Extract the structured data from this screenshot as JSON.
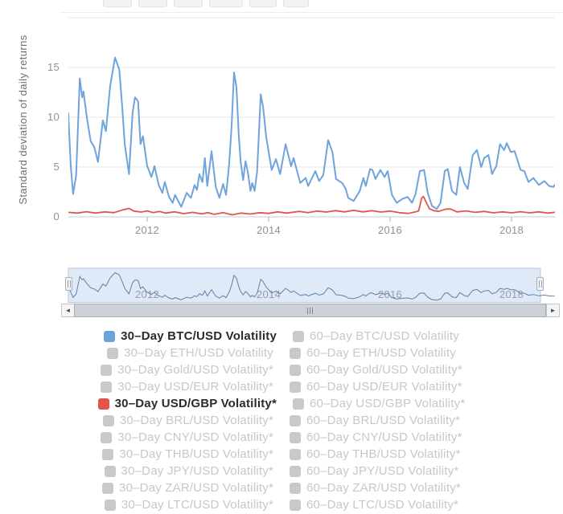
{
  "toolbar": {
    "range_button_count": 6
  },
  "chart_data": {
    "type": "line",
    "title": "",
    "xlabel": "",
    "ylabel": "Standard deviation of daily returns",
    "x_range": [
      2010.7,
      2018.71
    ],
    "ylim": [
      0,
      20
    ],
    "x_ticks": [
      2012,
      2014,
      2016,
      2018
    ],
    "y_ticks": [
      0,
      5,
      10,
      15
    ],
    "grid": true,
    "legend_position": "bottom",
    "series": [
      {
        "name": "30–Day BTC/USD Volatility",
        "color": "#6FA3DB",
        "points": [
          [
            2010.7,
            10.4
          ],
          [
            2010.74,
            5.2
          ],
          [
            2010.78,
            2.3
          ],
          [
            2010.83,
            4.2
          ],
          [
            2010.89,
            13.9
          ],
          [
            2010.93,
            12.0
          ],
          [
            2010.95,
            12.6
          ],
          [
            2011.01,
            9.8
          ],
          [
            2011.07,
            7.6
          ],
          [
            2011.13,
            7.0
          ],
          [
            2011.19,
            5.5
          ],
          [
            2011.27,
            9.7
          ],
          [
            2011.32,
            8.6
          ],
          [
            2011.39,
            13.1
          ],
          [
            2011.47,
            16.0
          ],
          [
            2011.54,
            14.8
          ],
          [
            2011.59,
            11.0
          ],
          [
            2011.63,
            7.3
          ],
          [
            2011.7,
            4.3
          ],
          [
            2011.76,
            10.5
          ],
          [
            2011.8,
            12.0
          ],
          [
            2011.85,
            11.6
          ],
          [
            2011.89,
            7.3
          ],
          [
            2011.93,
            8.1
          ],
          [
            2012.0,
            5.1
          ],
          [
            2012.07,
            4.0
          ],
          [
            2012.12,
            5.1
          ],
          [
            2012.19,
            3.2
          ],
          [
            2012.25,
            2.4
          ],
          [
            2012.29,
            3.5
          ],
          [
            2012.36,
            2.0
          ],
          [
            2012.42,
            1.4
          ],
          [
            2012.46,
            2.2
          ],
          [
            2012.56,
            1.0
          ],
          [
            2012.65,
            2.4
          ],
          [
            2012.72,
            1.9
          ],
          [
            2012.78,
            3.2
          ],
          [
            2012.82,
            2.7
          ],
          [
            2012.86,
            4.3
          ],
          [
            2012.91,
            3.5
          ],
          [
            2012.95,
            5.9
          ],
          [
            2012.99,
            3.1
          ],
          [
            2013.06,
            6.6
          ],
          [
            2013.13,
            3.0
          ],
          [
            2013.19,
            1.9
          ],
          [
            2013.25,
            3.3
          ],
          [
            2013.3,
            2.2
          ],
          [
            2013.35,
            5.3
          ],
          [
            2013.39,
            9.0
          ],
          [
            2013.43,
            14.5
          ],
          [
            2013.47,
            13.0
          ],
          [
            2013.51,
            8.0
          ],
          [
            2013.54,
            5.5
          ],
          [
            2013.58,
            3.7
          ],
          [
            2013.62,
            5.6
          ],
          [
            2013.66,
            4.4
          ],
          [
            2013.7,
            2.6
          ],
          [
            2013.73,
            3.4
          ],
          [
            2013.77,
            2.6
          ],
          [
            2013.81,
            4.6
          ],
          [
            2013.87,
            12.3
          ],
          [
            2013.91,
            11.0
          ],
          [
            2013.96,
            8.0
          ],
          [
            2014.05,
            4.7
          ],
          [
            2014.12,
            5.8
          ],
          [
            2014.19,
            4.3
          ],
          [
            2014.28,
            7.3
          ],
          [
            2014.37,
            5.1
          ],
          [
            2014.41,
            5.9
          ],
          [
            2014.52,
            3.4
          ],
          [
            2014.61,
            3.9
          ],
          [
            2014.65,
            3.1
          ],
          [
            2014.77,
            4.6
          ],
          [
            2014.83,
            3.6
          ],
          [
            2014.9,
            4.2
          ],
          [
            2014.98,
            7.7
          ],
          [
            2015.05,
            6.5
          ],
          [
            2015.11,
            3.8
          ],
          [
            2015.21,
            3.4
          ],
          [
            2015.27,
            2.8
          ],
          [
            2015.31,
            1.9
          ],
          [
            2015.4,
            1.6
          ],
          [
            2015.5,
            2.6
          ],
          [
            2015.56,
            3.9
          ],
          [
            2015.6,
            3.1
          ],
          [
            2015.67,
            4.8
          ],
          [
            2015.71,
            4.7
          ],
          [
            2015.76,
            3.8
          ],
          [
            2015.84,
            4.7
          ],
          [
            2015.91,
            4.0
          ],
          [
            2015.96,
            4.6
          ],
          [
            2016.03,
            2.2
          ],
          [
            2016.11,
            1.4
          ],
          [
            2016.2,
            1.8
          ],
          [
            2016.29,
            2.0
          ],
          [
            2016.36,
            1.4
          ],
          [
            2016.42,
            2.3
          ],
          [
            2016.49,
            4.6
          ],
          [
            2016.56,
            4.7
          ],
          [
            2016.62,
            2.4
          ],
          [
            2016.69,
            1.1
          ],
          [
            2016.77,
            0.8
          ],
          [
            2016.83,
            1.4
          ],
          [
            2016.9,
            4.6
          ],
          [
            2016.95,
            4.8
          ],
          [
            2017.02,
            2.6
          ],
          [
            2017.09,
            2.2
          ],
          [
            2017.15,
            5.0
          ],
          [
            2017.22,
            3.4
          ],
          [
            2017.28,
            2.8
          ],
          [
            2017.36,
            6.2
          ],
          [
            2017.43,
            6.7
          ],
          [
            2017.5,
            5.0
          ],
          [
            2017.55,
            5.9
          ],
          [
            2017.62,
            6.2
          ],
          [
            2017.68,
            4.3
          ],
          [
            2017.75,
            5.1
          ],
          [
            2017.81,
            7.3
          ],
          [
            2017.88,
            6.7
          ],
          [
            2017.92,
            7.4
          ],
          [
            2017.99,
            6.5
          ],
          [
            2018.05,
            6.6
          ],
          [
            2018.15,
            4.7
          ],
          [
            2018.21,
            4.6
          ],
          [
            2018.28,
            3.5
          ],
          [
            2018.36,
            3.9
          ],
          [
            2018.45,
            3.2
          ],
          [
            2018.54,
            3.6
          ],
          [
            2018.62,
            3.1
          ],
          [
            2018.69,
            3.0
          ],
          [
            2018.71,
            3.2
          ]
        ]
      },
      {
        "name": "30–Day USD/GBP Volatility*",
        "color": "#E4544F",
        "points": [
          [
            2010.7,
            0.45
          ],
          [
            2010.85,
            0.38
          ],
          [
            2011.0,
            0.52
          ],
          [
            2011.15,
            0.38
          ],
          [
            2011.3,
            0.5
          ],
          [
            2011.45,
            0.42
          ],
          [
            2011.6,
            0.7
          ],
          [
            2011.7,
            0.85
          ],
          [
            2011.78,
            0.58
          ],
          [
            2011.9,
            0.48
          ],
          [
            2012.0,
            0.6
          ],
          [
            2012.1,
            0.42
          ],
          [
            2012.2,
            0.55
          ],
          [
            2012.3,
            0.38
          ],
          [
            2012.45,
            0.5
          ],
          [
            2012.6,
            0.32
          ],
          [
            2012.75,
            0.45
          ],
          [
            2012.9,
            0.3
          ],
          [
            2013.0,
            0.42
          ],
          [
            2013.1,
            0.25
          ],
          [
            2013.25,
            0.42
          ],
          [
            2013.4,
            0.2
          ],
          [
            2013.55,
            0.38
          ],
          [
            2013.7,
            0.28
          ],
          [
            2013.85,
            0.42
          ],
          [
            2014.0,
            0.35
          ],
          [
            2014.15,
            0.5
          ],
          [
            2014.3,
            0.38
          ],
          [
            2014.5,
            0.55
          ],
          [
            2014.65,
            0.42
          ],
          [
            2014.8,
            0.58
          ],
          [
            2014.95,
            0.48
          ],
          [
            2015.1,
            0.62
          ],
          [
            2015.25,
            0.5
          ],
          [
            2015.4,
            0.65
          ],
          [
            2015.55,
            0.5
          ],
          [
            2015.7,
            0.62
          ],
          [
            2015.85,
            0.48
          ],
          [
            2016.0,
            0.58
          ],
          [
            2016.15,
            0.42
          ],
          [
            2016.3,
            0.35
          ],
          [
            2016.42,
            0.5
          ],
          [
            2016.47,
            0.6
          ],
          [
            2016.52,
            1.9
          ],
          [
            2016.55,
            2.05
          ],
          [
            2016.6,
            1.4
          ],
          [
            2016.65,
            0.8
          ],
          [
            2016.72,
            0.62
          ],
          [
            2016.8,
            0.55
          ],
          [
            2016.92,
            0.78
          ],
          [
            2017.0,
            0.78
          ],
          [
            2017.1,
            0.5
          ],
          [
            2017.25,
            0.6
          ],
          [
            2017.4,
            0.45
          ],
          [
            2017.55,
            0.55
          ],
          [
            2017.7,
            0.4
          ],
          [
            2017.85,
            0.5
          ],
          [
            2018.0,
            0.4
          ],
          [
            2018.15,
            0.52
          ],
          [
            2018.3,
            0.4
          ],
          [
            2018.45,
            0.5
          ],
          [
            2018.6,
            0.38
          ],
          [
            2018.71,
            0.45
          ]
        ]
      }
    ]
  },
  "navigator": {
    "labels": [
      "2012",
      "2014",
      "2016",
      "2018"
    ],
    "selection_color": "#DFE9F7",
    "outline_color": "#B9C7D8",
    "line_color": "#5E80A8"
  },
  "scrollbar": {
    "left_arrow": "◄",
    "right_arrow": "►",
    "grip_lines": 3
  },
  "legend": {
    "active_color": "#2B2B2B",
    "inactive_color": "#C7C7C7",
    "inactive_swatch": "#C9C9C9",
    "rows": [
      {
        "left": {
          "label": "30–Day BTC/USD Volatility",
          "color": "#6FA3DB",
          "active": true
        },
        "right": {
          "label": "60–Day BTC/USD Volatility",
          "color": "#C9C9C9",
          "active": false
        }
      },
      {
        "left": {
          "label": "30–Day ETH/USD Volatility",
          "color": "#C9C9C9",
          "active": false
        },
        "right": {
          "label": "60–Day ETH/USD Volatility",
          "color": "#C9C9C9",
          "active": false
        }
      },
      {
        "left": {
          "label": "30–Day Gold/USD Volatility*",
          "color": "#C9C9C9",
          "active": false
        },
        "right": {
          "label": "60–Day Gold/USD Volatility*",
          "color": "#C9C9C9",
          "active": false
        }
      },
      {
        "left": {
          "label": "30–Day USD/EUR Volatility*",
          "color": "#C9C9C9",
          "active": false
        },
        "right": {
          "label": "60–Day USD/EUR Volatility*",
          "color": "#C9C9C9",
          "active": false
        }
      },
      {
        "left": {
          "label": "30–Day USD/GBP Volatility*",
          "color": "#E4544F",
          "active": true
        },
        "right": {
          "label": "60–Day USD/GBP Volatility*",
          "color": "#C9C9C9",
          "active": false
        }
      },
      {
        "left": {
          "label": "30–Day BRL/USD Volatility*",
          "color": "#C9C9C9",
          "active": false
        },
        "right": {
          "label": "60–Day BRL/USD Volatility*",
          "color": "#C9C9C9",
          "active": false
        }
      },
      {
        "left": {
          "label": "30–Day CNY/USD Volatility*",
          "color": "#C9C9C9",
          "active": false
        },
        "right": {
          "label": "60–Day CNY/USD Volatility*",
          "color": "#C9C9C9",
          "active": false
        }
      },
      {
        "left": {
          "label": "30–Day THB/USD Volatility*",
          "color": "#C9C9C9",
          "active": false
        },
        "right": {
          "label": "60–Day THB/USD Volatility*",
          "color": "#C9C9C9",
          "active": false
        }
      },
      {
        "left": {
          "label": "30–Day JPY/USD Volatility*",
          "color": "#C9C9C9",
          "active": false
        },
        "right": {
          "label": "60–Day JPY/USD Volatility*",
          "color": "#C9C9C9",
          "active": false
        }
      },
      {
        "left": {
          "label": "30–Day ZAR/USD Volatility*",
          "color": "#C9C9C9",
          "active": false
        },
        "right": {
          "label": "60–Day ZAR/USD Volatility*",
          "color": "#C9C9C9",
          "active": false
        }
      },
      {
        "left": {
          "label": "30–Day LTC/USD Volatility*",
          "color": "#C9C9C9",
          "active": false
        },
        "right": {
          "label": "60–Day LTC/USD Volatility*",
          "color": "#C9C9C9",
          "active": false
        }
      }
    ]
  }
}
